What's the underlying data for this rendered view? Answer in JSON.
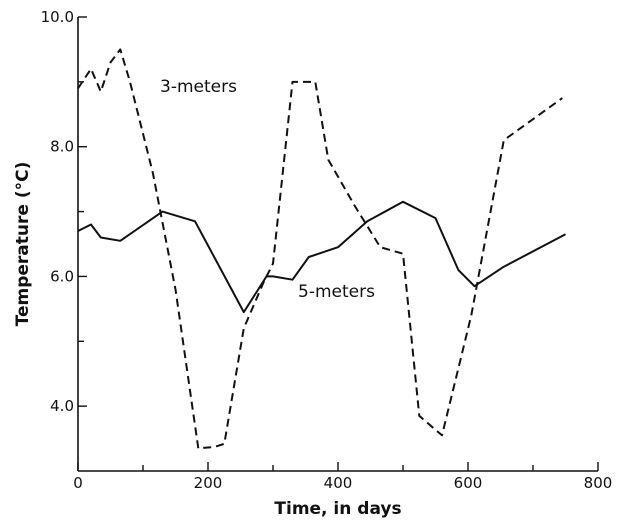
{
  "chart_data": {
    "type": "line",
    "title": "",
    "xlabel": "Time, in days",
    "ylabel": "Temperature (°C)",
    "xlim": [
      0,
      800
    ],
    "ylim": [
      3.0,
      10.0
    ],
    "x_ticks": [
      {
        "value": 0,
        "label": "0"
      },
      {
        "value": 200,
        "label": "200"
      },
      {
        "value": 400,
        "label": "400"
      },
      {
        "value": 600,
        "label": "600"
      },
      {
        "value": 800,
        "label": "800"
      }
    ],
    "x_minor_ticks": [
      100,
      300,
      500,
      700
    ],
    "y_ticks": [
      {
        "value": 4.0,
        "label": "4.0"
      },
      {
        "value": 6.0,
        "label": "6.0"
      },
      {
        "value": 8.0,
        "label": "8.0"
      },
      {
        "value": 10.0,
        "label": "10.0"
      }
    ],
    "y_minor_ticks": [
      5.0,
      7.0,
      9.0
    ],
    "grid": false,
    "series": [
      {
        "name": "3-meters",
        "dash": "dashed",
        "x": [
          0,
          20,
          35,
          50,
          65,
          80,
          115,
          150,
          185,
          210,
          225,
          255,
          285,
          300,
          330,
          365,
          385,
          425,
          465,
          500,
          525,
          560,
          605,
          655,
          745
        ],
        "y": [
          8.9,
          9.2,
          8.85,
          9.3,
          9.5,
          9.0,
          7.6,
          5.8,
          3.35,
          3.37,
          3.42,
          5.2,
          5.9,
          6.2,
          9.0,
          9.0,
          7.8,
          7.1,
          6.45,
          6.35,
          3.85,
          3.55,
          5.4,
          8.1,
          8.75
        ]
      },
      {
        "name": "5-meters",
        "dash": "solid",
        "x": [
          0,
          20,
          35,
          65,
          130,
          180,
          255,
          290,
          300,
          330,
          355,
          400,
          445,
          500,
          550,
          585,
          610,
          655,
          750
        ],
        "y": [
          6.7,
          6.8,
          6.6,
          6.55,
          7.0,
          6.85,
          5.45,
          6.0,
          6.0,
          5.95,
          6.3,
          6.45,
          6.85,
          7.15,
          6.9,
          6.1,
          5.85,
          6.15,
          6.65
        ]
      }
    ]
  }
}
